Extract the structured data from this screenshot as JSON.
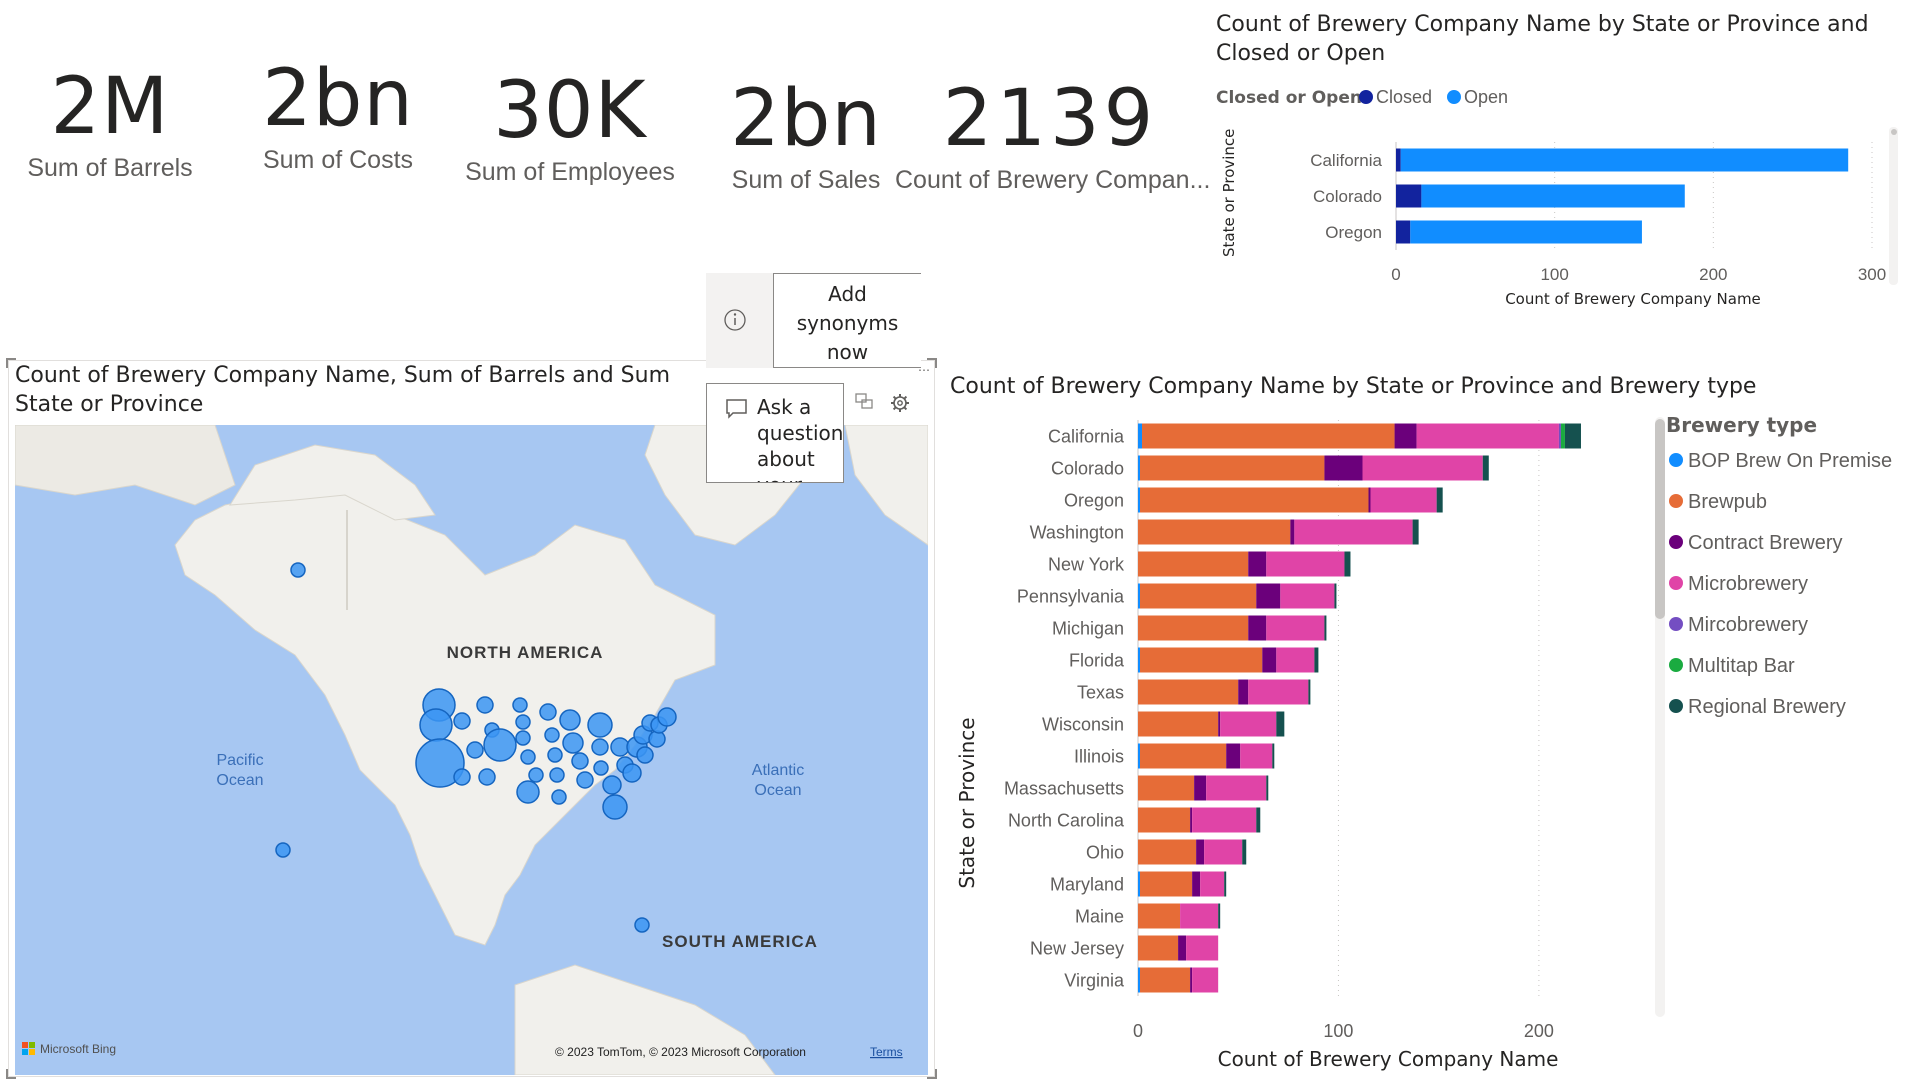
{
  "kpis": [
    {
      "value": "2M",
      "label": "Sum of Barrels"
    },
    {
      "value": "2bn",
      "label": "Sum of Costs"
    },
    {
      "value": "30K",
      "label": "Sum of Employees"
    },
    {
      "value": "2bn",
      "label": "Sum of Sales"
    },
    {
      "value": "2139",
      "label": "Count of Brewery Compan..."
    }
  ],
  "map": {
    "title_line1": "Count of Brewery Company Name, Sum of Barrels and Sum",
    "title_line2": "State or Province",
    "labels": {
      "north_america": "NORTH AMERICA",
      "south_america": "SOUTH AMERICA",
      "pacific_1": "Pacific",
      "pacific_2": "Ocean",
      "atlantic_1": "Atlantic",
      "atlantic_2": "Ocean"
    },
    "attribution": "© 2023 TomTom, © 2023 Microsoft Corporation",
    "terms_link": "Terms",
    "bing_logo": "Microsoft Bing",
    "colors": {
      "water": "#a7c7f2",
      "land": "#f2f1ed",
      "bubble": "#3b95f3",
      "bubble_stroke": "#1565c0"
    }
  },
  "qa": {
    "info_icon": "info-icon",
    "synonyms_button": [
      "Add",
      "synonyms",
      "now"
    ],
    "ask_text": [
      "Ask a",
      "question",
      "about",
      "your"
    ]
  },
  "chart_data": [
    {
      "type": "bar",
      "title_line1": "Count of Brewery Company Name by State or Province and",
      "title_line2": "Closed or Open",
      "legend_title": "Closed or Open",
      "xlabel": "Count of Brewery Company Name",
      "ylabel": "State or Province",
      "stacked": true,
      "categories": [
        "California",
        "Colorado",
        "Oregon"
      ],
      "series": [
        {
          "name": "Closed",
          "color": "#12239e",
          "values": [
            3,
            16,
            9
          ]
        },
        {
          "name": "Open",
          "color": "#118dff",
          "values": [
            282,
            166,
            146
          ]
        }
      ],
      "xlim": [
        0,
        300
      ],
      "xticks": [
        0,
        100,
        200,
        300
      ]
    },
    {
      "type": "bar",
      "title": "Count of Brewery Company Name by State or Province and Brewery type",
      "legend_title": "Brewery type",
      "xlabel": "Count of Brewery Company Name",
      "ylabel": "State or Province",
      "stacked": true,
      "categories": [
        "California",
        "Colorado",
        "Oregon",
        "Washington",
        "New York",
        "Pennsylvania",
        "Michigan",
        "Florida",
        "Texas",
        "Wisconsin",
        "Illinois",
        "Massachusetts",
        "North Carolina",
        "Ohio",
        "Maryland",
        "Maine",
        "New Jersey",
        "Virginia"
      ],
      "series": [
        {
          "name": "BOP Brew On Premise",
          "color": "#118dff",
          "values": [
            2,
            1,
            1,
            0,
            0,
            1,
            0,
            1,
            0,
            0,
            1,
            0,
            0,
            0,
            1,
            0,
            0,
            1
          ]
        },
        {
          "name": "Brewpub",
          "color": "#e66c37",
          "values": [
            126,
            92,
            114,
            76,
            55,
            58,
            55,
            61,
            50,
            40,
            43,
            28,
            26,
            29,
            26,
            21,
            20,
            25
          ]
        },
        {
          "name": "Contract Brewery",
          "color": "#6b007b",
          "values": [
            11,
            19,
            1,
            2,
            9,
            12,
            9,
            7,
            5,
            1,
            7,
            6,
            1,
            4,
            4,
            0,
            4,
            1
          ]
        },
        {
          "name": "Microbrewery",
          "color": "#e044a7",
          "values": [
            71,
            60,
            33,
            59,
            39,
            27,
            29,
            19,
            30,
            28,
            16,
            30,
            32,
            19,
            12,
            19,
            16,
            13
          ]
        },
        {
          "name": "Mircobrewery",
          "color": "#744ec2",
          "values": [
            1,
            0,
            0,
            0,
            0,
            0,
            0,
            0,
            0,
            0,
            0,
            0,
            0,
            0,
            0,
            0,
            0,
            0
          ]
        },
        {
          "name": "Multitap Bar",
          "color": "#1aab40",
          "values": [
            2,
            0,
            0,
            0,
            0,
            0,
            0,
            0,
            0,
            0,
            0,
            0,
            0,
            0,
            0,
            0,
            0,
            0
          ]
        },
        {
          "name": "Regional Brewery",
          "color": "#15514f",
          "values": [
            8,
            3,
            3,
            3,
            3,
            1,
            1,
            2,
            1,
            4,
            1,
            1,
            2,
            2,
            1,
            1,
            0,
            0
          ]
        }
      ],
      "xlim": [
        0,
        225
      ],
      "xticks": [
        0,
        100,
        200
      ]
    }
  ]
}
